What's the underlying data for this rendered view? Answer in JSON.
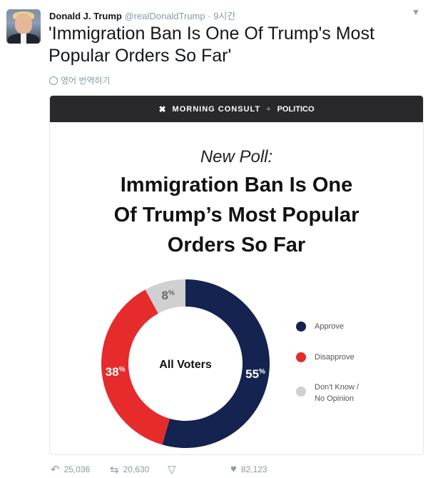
{
  "tweet": {
    "author_name": "Donald J. Trump",
    "handle": "@realDonaldTrump",
    "time": "· 9시간",
    "text": "'Immigration Ban Is One Of Trump's Most Popular Orders So Far'",
    "translate_label": "영어 번역하기"
  },
  "card": {
    "brand_left": "MORNING CONSULT",
    "brand_plus": "+",
    "brand_right": "POLITICO",
    "subtitle": "New Poll:",
    "title_lines": [
      "Immigration Ban Is One",
      "Of Trump’s Most Popular",
      "Orders So Far"
    ]
  },
  "chart_data": {
    "type": "pie",
    "center_label": "All Voters",
    "slices": [
      {
        "name": "Approve",
        "value": 55,
        "color": "#14234f"
      },
      {
        "name": "Disapprove",
        "value": 38,
        "color": "#e52b2b"
      },
      {
        "name": "Don't Know / No Opinion",
        "value": 8,
        "color": "#d0d0d0"
      }
    ],
    "legend": [
      "Approve",
      "Disapprove",
      "Don't Know /",
      "No Opinion"
    ]
  },
  "actions": {
    "reply_count": "25,036",
    "retweet_count": "20,630",
    "like_count": "82,123"
  },
  "icons": {
    "reply": "reply-icon",
    "retweet": "retweet-icon",
    "more": "more-icon",
    "like": "heart-icon",
    "caret": "chevron-down-icon"
  }
}
